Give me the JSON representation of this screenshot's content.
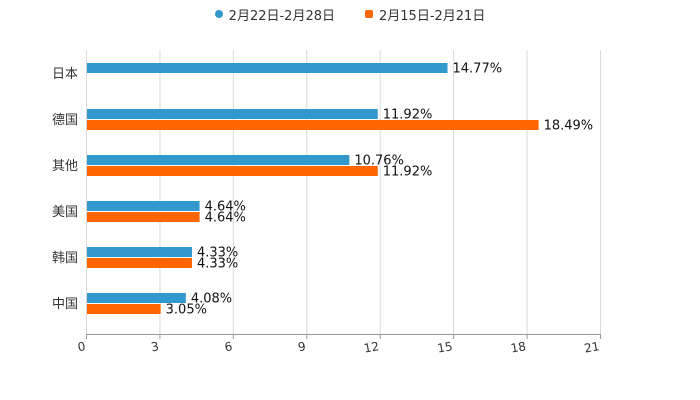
{
  "chart_data": {
    "type": "bar",
    "orientation": "horizontal",
    "title": "",
    "xlabel": "",
    "ylabel": "",
    "categories": [
      "日本",
      "德国",
      "其他",
      "美国",
      "韩国",
      "中国"
    ],
    "series": [
      {
        "name": "2月22日-2月28日",
        "color": "#3399cc",
        "marker": "circle",
        "values": [
          14.77,
          11.92,
          10.76,
          4.64,
          4.33,
          4.08
        ],
        "labels": [
          "14.77%",
          "11.92%",
          "10.76%",
          "4.64%",
          "4.33%",
          "4.08%"
        ]
      },
      {
        "name": "2月15日-2月21日",
        "color": "#ff6600",
        "marker": "square",
        "values": [
          null,
          18.49,
          11.92,
          4.64,
          4.33,
          3.05
        ],
        "labels": [
          "",
          "18.49%",
          "11.92%",
          "4.64%",
          "4.33%",
          "3.05%"
        ]
      }
    ],
    "xlim": [
      0,
      21
    ],
    "xticks": [
      "0",
      "3",
      "6",
      "9",
      "12",
      "15",
      "18",
      "21"
    ],
    "xtick_values": [
      0,
      3,
      6,
      9,
      12,
      15,
      18,
      21
    ],
    "grid": true,
    "legend_position": "top-center"
  }
}
